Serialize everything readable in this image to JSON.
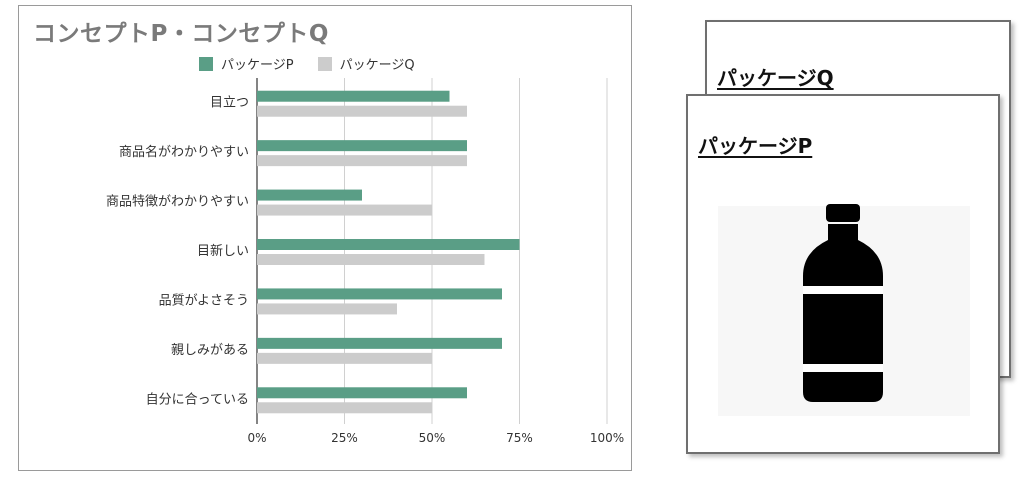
{
  "chart_data": {
    "type": "bar",
    "orientation": "horizontal",
    "title": "コンセプトP・コンセプトQ",
    "categories": [
      "目立つ",
      "商品名がわかりやすい",
      "商品特徴がわかりやすい",
      "目新しい",
      "品質がよさそう",
      "親しみがある",
      "自分に合っている"
    ],
    "series": [
      {
        "name": "パッケージP",
        "color": "#5a9e86",
        "values": [
          55,
          60,
          30,
          75,
          70,
          70,
          60
        ]
      },
      {
        "name": "パッケージQ",
        "color": "#cccccc",
        "values": [
          60,
          60,
          50,
          65,
          40,
          50,
          50
        ]
      }
    ],
    "xlim": [
      0,
      100
    ],
    "xticks": [
      0,
      25,
      50,
      75,
      100
    ],
    "xtick_labels": [
      "0%",
      "25%",
      "50%",
      "75%",
      "100%"
    ],
    "grid": "vertical",
    "legend_position": "top"
  },
  "cards": {
    "back_label": "パッケージQ",
    "front_label": "パッケージP",
    "front_icon": "bottle-icon"
  }
}
